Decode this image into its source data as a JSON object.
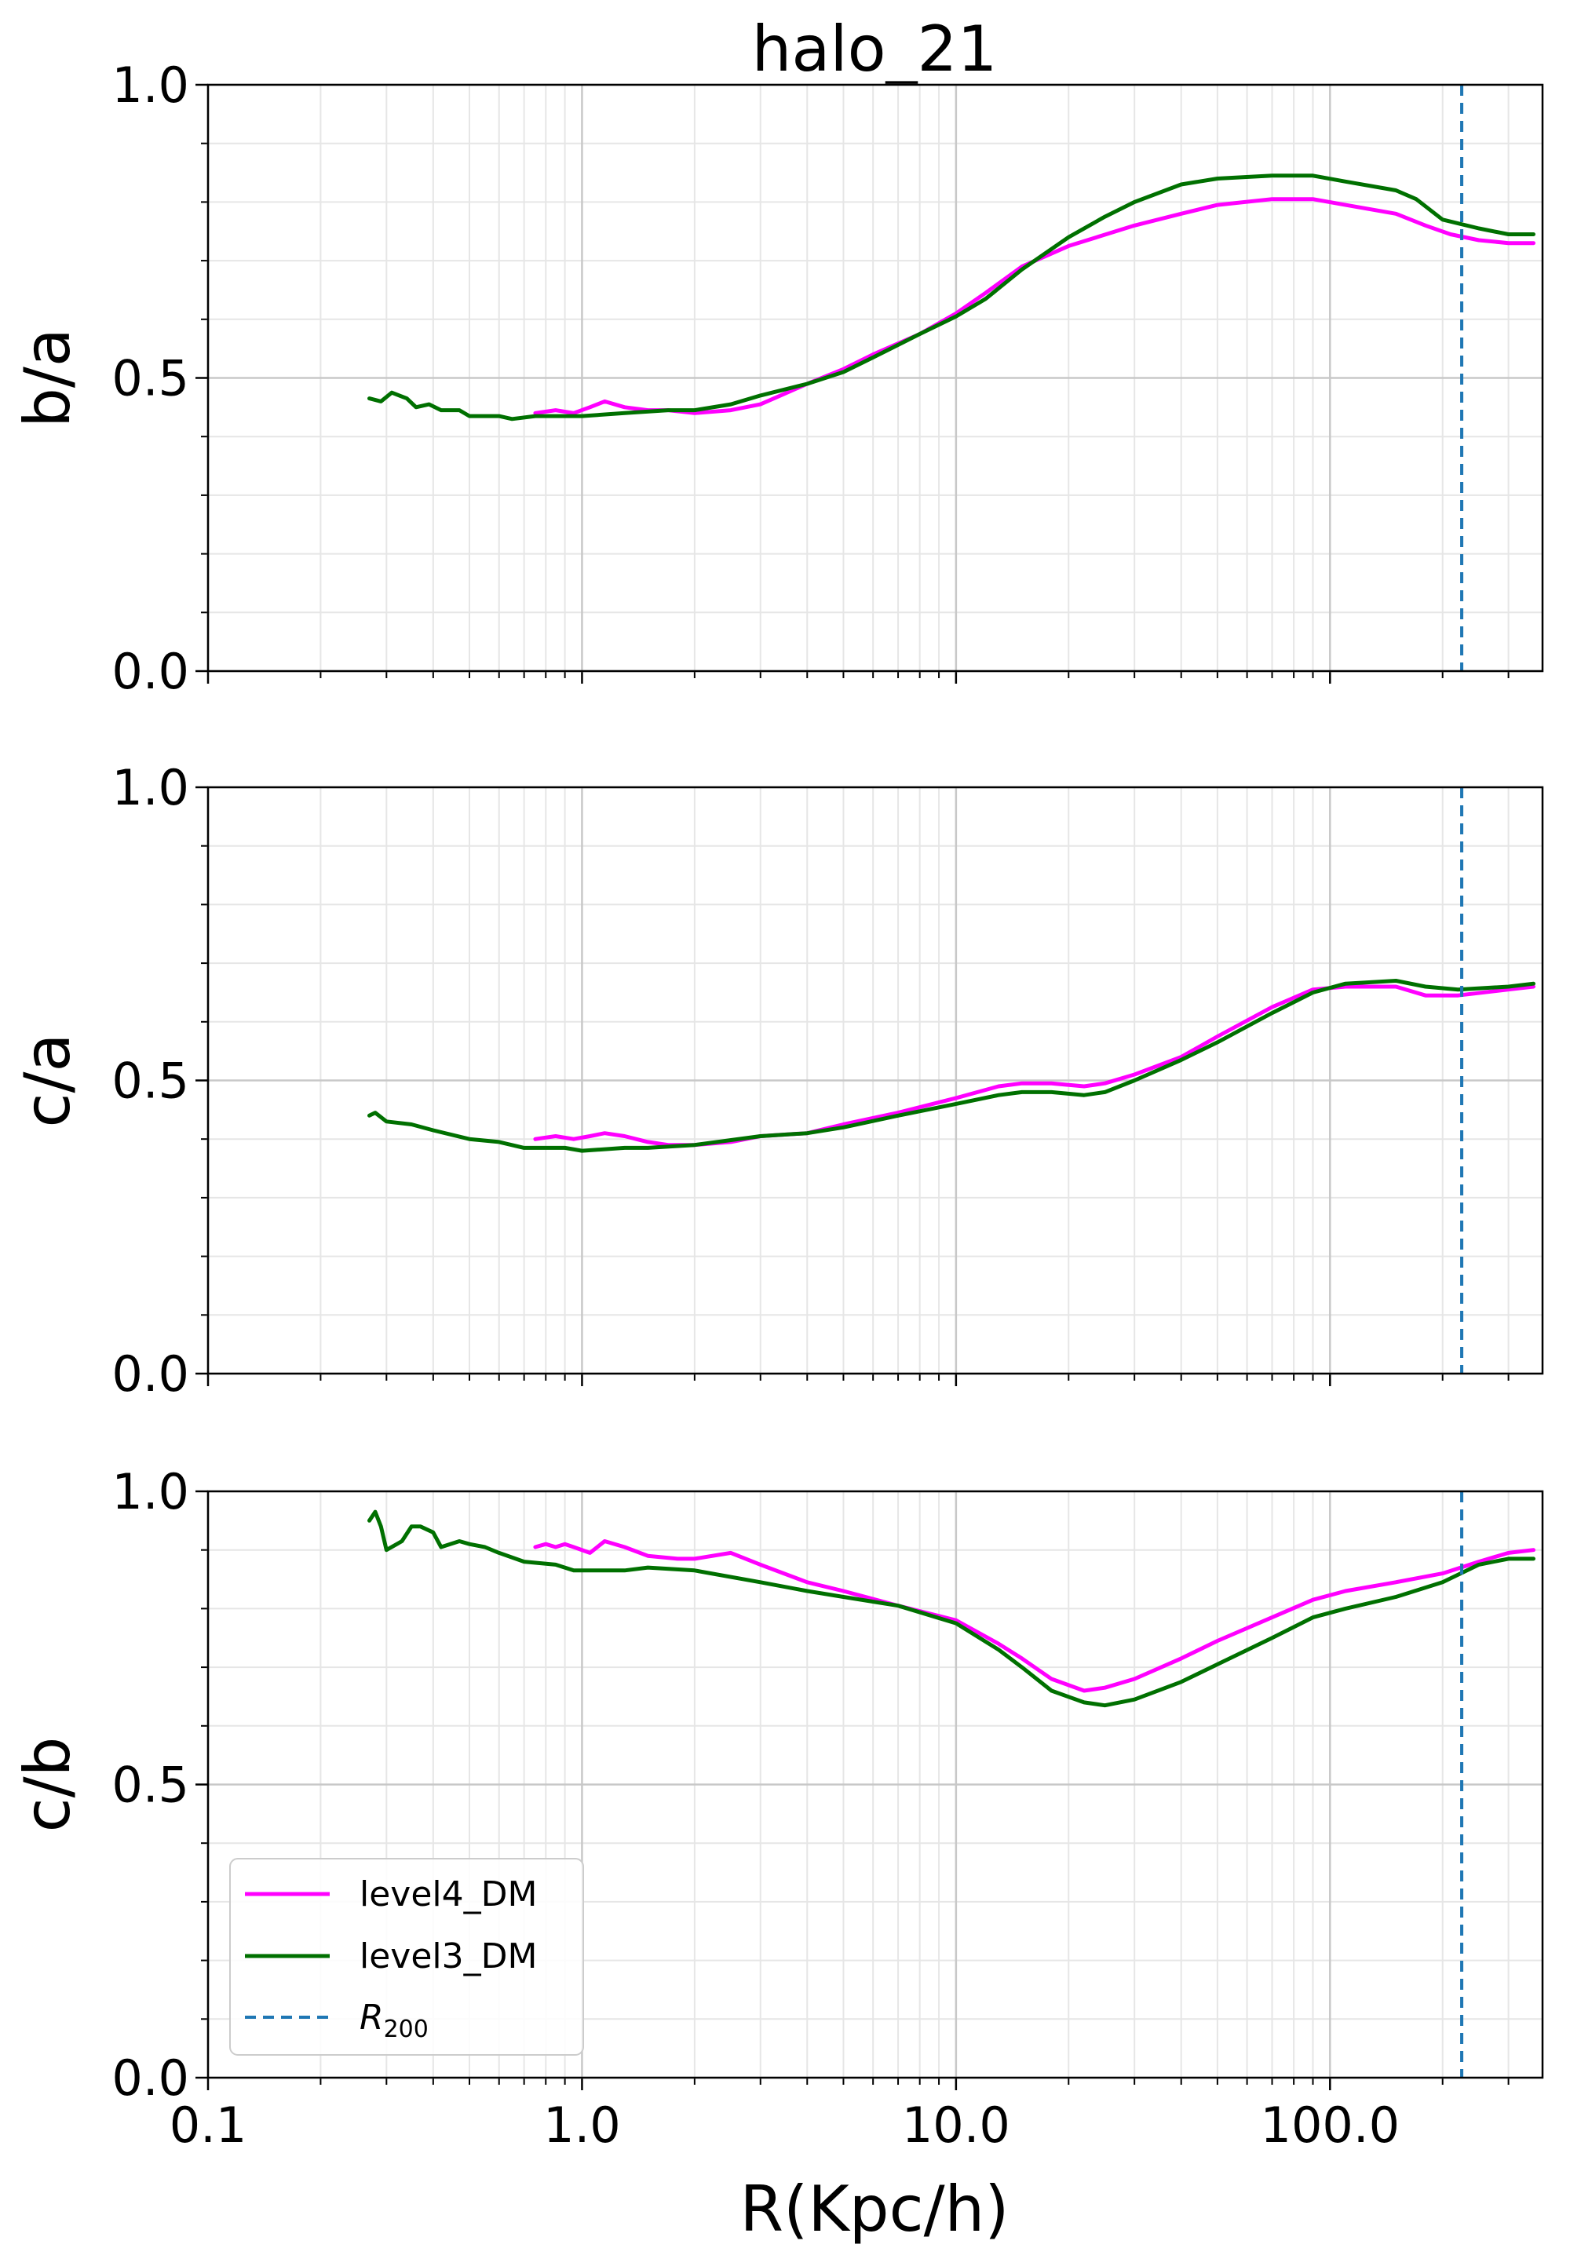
{
  "title": "halo_21",
  "xlabel": "R(Kpc/h)",
  "xtick_labels": [
    "0.1",
    "1.0",
    "10.0",
    "100.0"
  ],
  "ytick_labels": [
    "0.0",
    "0.5",
    "1.0"
  ],
  "legend": {
    "level4": "level4_DM",
    "level3": "level3_DM",
    "r200_main": "R",
    "r200_sub": "200"
  },
  "colors": {
    "level4": "#ff00ff",
    "level3": "#007000",
    "r200": "#1f77b4",
    "grid_major": "#c8c8c8",
    "grid_minor": "#e6e6e6"
  },
  "chart_data": [
    {
      "type": "line",
      "title": "halo_21",
      "ylabel": "b/a",
      "xscale": "log",
      "xlim": [
        0.1,
        370
      ],
      "ylim": [
        0,
        1
      ],
      "grid": true,
      "r200": 225,
      "series": [
        {
          "name": "level4_DM",
          "points": [
            [
              0.75,
              0.44
            ],
            [
              0.85,
              0.445
            ],
            [
              0.95,
              0.44
            ],
            [
              1.05,
              0.45
            ],
            [
              1.15,
              0.46
            ],
            [
              1.3,
              0.45
            ],
            [
              1.5,
              0.445
            ],
            [
              1.7,
              0.445
            ],
            [
              2.0,
              0.44
            ],
            [
              2.5,
              0.445
            ],
            [
              3.0,
              0.455
            ],
            [
              4.0,
              0.49
            ],
            [
              5.0,
              0.515
            ],
            [
              6.0,
              0.54
            ],
            [
              8.0,
              0.575
            ],
            [
              10,
              0.61
            ],
            [
              12,
              0.645
            ],
            [
              15,
              0.69
            ],
            [
              20,
              0.725
            ],
            [
              30,
              0.76
            ],
            [
              40,
              0.78
            ],
            [
              50,
              0.795
            ],
            [
              70,
              0.805
            ],
            [
              90,
              0.805
            ],
            [
              110,
              0.795
            ],
            [
              150,
              0.78
            ],
            [
              180,
              0.76
            ],
            [
              210,
              0.745
            ],
            [
              250,
              0.735
            ],
            [
              300,
              0.73
            ],
            [
              350,
              0.73
            ]
          ]
        },
        {
          "name": "level3_DM",
          "points": [
            [
              0.27,
              0.465
            ],
            [
              0.29,
              0.46
            ],
            [
              0.31,
              0.475
            ],
            [
              0.34,
              0.465
            ],
            [
              0.36,
              0.45
            ],
            [
              0.39,
              0.455
            ],
            [
              0.42,
              0.445
            ],
            [
              0.47,
              0.445
            ],
            [
              0.5,
              0.435
            ],
            [
              0.6,
              0.435
            ],
            [
              0.65,
              0.43
            ],
            [
              0.75,
              0.435
            ],
            [
              0.9,
              0.435
            ],
            [
              1.0,
              0.435
            ],
            [
              1.3,
              0.44
            ],
            [
              1.7,
              0.445
            ],
            [
              2.0,
              0.445
            ],
            [
              2.5,
              0.455
            ],
            [
              3.0,
              0.47
            ],
            [
              4.0,
              0.49
            ],
            [
              5.0,
              0.51
            ],
            [
              6.0,
              0.535
            ],
            [
              8.0,
              0.575
            ],
            [
              10,
              0.605
            ],
            [
              12,
              0.635
            ],
            [
              15,
              0.685
            ],
            [
              20,
              0.74
            ],
            [
              25,
              0.775
            ],
            [
              30,
              0.8
            ],
            [
              40,
              0.83
            ],
            [
              50,
              0.84
            ],
            [
              70,
              0.845
            ],
            [
              90,
              0.845
            ],
            [
              110,
              0.835
            ],
            [
              150,
              0.82
            ],
            [
              170,
              0.805
            ],
            [
              200,
              0.77
            ],
            [
              250,
              0.755
            ],
            [
              300,
              0.745
            ],
            [
              350,
              0.745
            ]
          ]
        }
      ]
    },
    {
      "type": "line",
      "ylabel": "c/a",
      "xscale": "log",
      "xlim": [
        0.1,
        370
      ],
      "ylim": [
        0,
        1
      ],
      "grid": true,
      "r200": 225,
      "series": [
        {
          "name": "level4_DM",
          "points": [
            [
              0.75,
              0.4
            ],
            [
              0.85,
              0.405
            ],
            [
              0.95,
              0.4
            ],
            [
              1.05,
              0.405
            ],
            [
              1.15,
              0.41
            ],
            [
              1.3,
              0.405
            ],
            [
              1.5,
              0.395
            ],
            [
              1.7,
              0.39
            ],
            [
              2.0,
              0.39
            ],
            [
              2.5,
              0.395
            ],
            [
              3.0,
              0.405
            ],
            [
              4.0,
              0.41
            ],
            [
              5.0,
              0.425
            ],
            [
              7.0,
              0.445
            ],
            [
              10,
              0.47
            ],
            [
              13,
              0.49
            ],
            [
              15,
              0.495
            ],
            [
              18,
              0.495
            ],
            [
              22,
              0.49
            ],
            [
              25,
              0.495
            ],
            [
              30,
              0.51
            ],
            [
              40,
              0.54
            ],
            [
              50,
              0.575
            ],
            [
              70,
              0.625
            ],
            [
              90,
              0.655
            ],
            [
              110,
              0.66
            ],
            [
              150,
              0.66
            ],
            [
              180,
              0.645
            ],
            [
              220,
              0.645
            ],
            [
              300,
              0.655
            ],
            [
              350,
              0.66
            ]
          ]
        },
        {
          "name": "level3_DM",
          "points": [
            [
              0.27,
              0.44
            ],
            [
              0.28,
              0.445
            ],
            [
              0.3,
              0.43
            ],
            [
              0.35,
              0.425
            ],
            [
              0.4,
              0.415
            ],
            [
              0.5,
              0.4
            ],
            [
              0.6,
              0.395
            ],
            [
              0.7,
              0.385
            ],
            [
              0.9,
              0.385
            ],
            [
              1.0,
              0.38
            ],
            [
              1.3,
              0.385
            ],
            [
              1.5,
              0.385
            ],
            [
              2.0,
              0.39
            ],
            [
              3.0,
              0.405
            ],
            [
              4.0,
              0.41
            ],
            [
              5.0,
              0.42
            ],
            [
              7.0,
              0.44
            ],
            [
              10,
              0.46
            ],
            [
              13,
              0.475
            ],
            [
              15,
              0.48
            ],
            [
              18,
              0.48
            ],
            [
              22,
              0.475
            ],
            [
              25,
              0.48
            ],
            [
              30,
              0.5
            ],
            [
              40,
              0.535
            ],
            [
              50,
              0.565
            ],
            [
              70,
              0.615
            ],
            [
              90,
              0.65
            ],
            [
              110,
              0.665
            ],
            [
              150,
              0.67
            ],
            [
              180,
              0.66
            ],
            [
              220,
              0.655
            ],
            [
              300,
              0.66
            ],
            [
              350,
              0.665
            ]
          ]
        }
      ]
    },
    {
      "type": "line",
      "ylabel": "c/b",
      "xlabel": "R(Kpc/h)",
      "xscale": "log",
      "xlim": [
        0.1,
        370
      ],
      "ylim": [
        0,
        1
      ],
      "grid": true,
      "r200": 225,
      "legend_position": "lower-left",
      "series": [
        {
          "name": "level4_DM",
          "points": [
            [
              0.75,
              0.905
            ],
            [
              0.8,
              0.91
            ],
            [
              0.85,
              0.905
            ],
            [
              0.9,
              0.91
            ],
            [
              0.95,
              0.905
            ],
            [
              1.05,
              0.895
            ],
            [
              1.15,
              0.915
            ],
            [
              1.3,
              0.905
            ],
            [
              1.5,
              0.89
            ],
            [
              1.8,
              0.885
            ],
            [
              2.0,
              0.885
            ],
            [
              2.5,
              0.895
            ],
            [
              3.0,
              0.875
            ],
            [
              4.0,
              0.845
            ],
            [
              5.0,
              0.83
            ],
            [
              7.0,
              0.805
            ],
            [
              10,
              0.78
            ],
            [
              13,
              0.74
            ],
            [
              15,
              0.715
            ],
            [
              18,
              0.68
            ],
            [
              22,
              0.66
            ],
            [
              25,
              0.665
            ],
            [
              30,
              0.68
            ],
            [
              40,
              0.715
            ],
            [
              50,
              0.745
            ],
            [
              70,
              0.785
            ],
            [
              90,
              0.815
            ],
            [
              110,
              0.83
            ],
            [
              150,
              0.845
            ],
            [
              200,
              0.86
            ],
            [
              250,
              0.88
            ],
            [
              300,
              0.895
            ],
            [
              350,
              0.9
            ]
          ]
        },
        {
          "name": "level3_DM",
          "points": [
            [
              0.27,
              0.95
            ],
            [
              0.28,
              0.965
            ],
            [
              0.29,
              0.94
            ],
            [
              0.3,
              0.9
            ],
            [
              0.33,
              0.915
            ],
            [
              0.35,
              0.94
            ],
            [
              0.37,
              0.94
            ],
            [
              0.4,
              0.93
            ],
            [
              0.42,
              0.905
            ],
            [
              0.47,
              0.915
            ],
            [
              0.5,
              0.91
            ],
            [
              0.55,
              0.905
            ],
            [
              0.6,
              0.895
            ],
            [
              0.7,
              0.88
            ],
            [
              0.85,
              0.875
            ],
            [
              0.95,
              0.865
            ],
            [
              1.05,
              0.865
            ],
            [
              1.3,
              0.865
            ],
            [
              1.5,
              0.87
            ],
            [
              2.0,
              0.865
            ],
            [
              3.0,
              0.845
            ],
            [
              4.0,
              0.83
            ],
            [
              5.0,
              0.82
            ],
            [
              7.0,
              0.805
            ],
            [
              10,
              0.775
            ],
            [
              13,
              0.73
            ],
            [
              15,
              0.7
            ],
            [
              18,
              0.66
            ],
            [
              22,
              0.64
            ],
            [
              25,
              0.635
            ],
            [
              30,
              0.645
            ],
            [
              40,
              0.675
            ],
            [
              50,
              0.705
            ],
            [
              70,
              0.75
            ],
            [
              90,
              0.785
            ],
            [
              110,
              0.8
            ],
            [
              150,
              0.82
            ],
            [
              200,
              0.845
            ],
            [
              250,
              0.875
            ],
            [
              300,
              0.885
            ],
            [
              350,
              0.885
            ]
          ]
        }
      ]
    }
  ]
}
